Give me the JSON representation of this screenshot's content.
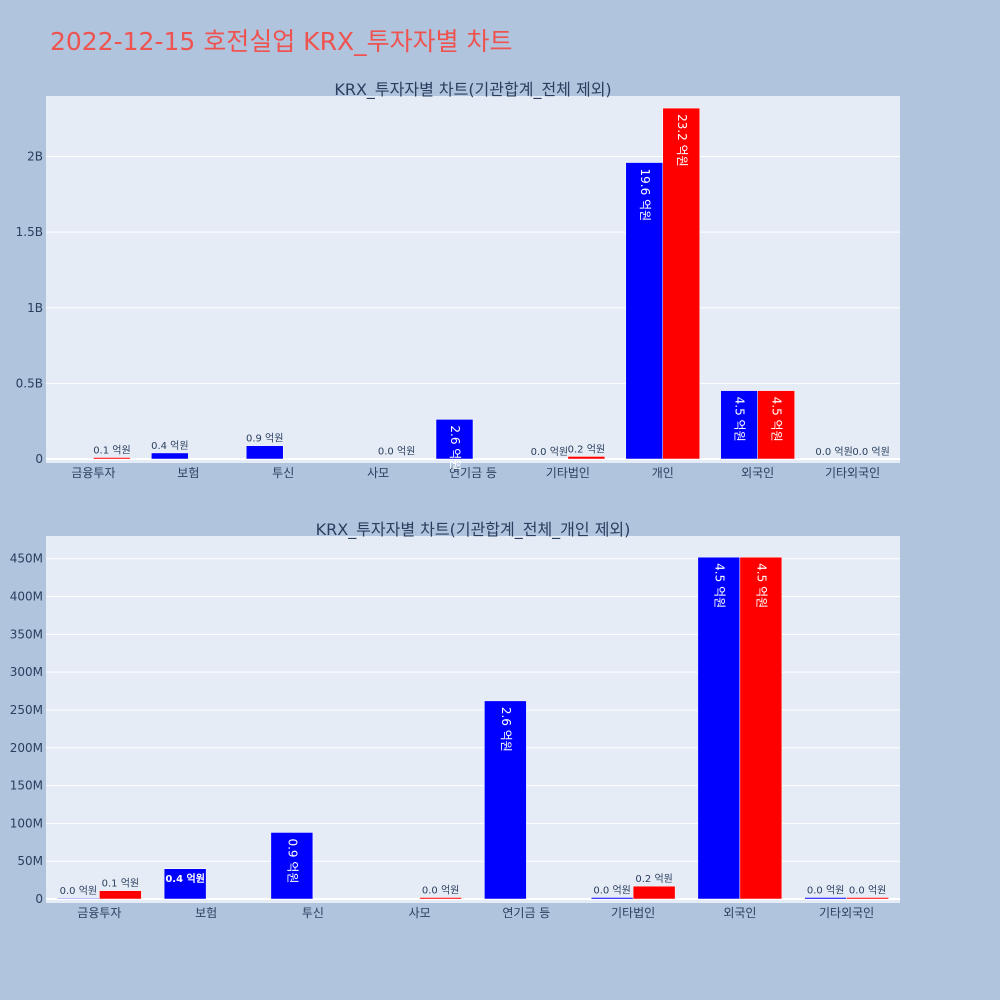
{
  "title": "2022-12-15 호전실업 KRX_투자자별 차트",
  "colors": {
    "buy": "#0000ff",
    "sell": "#ff0000",
    "plot_bg": "#e5ecf6",
    "page_bg": "#b0c4de",
    "title": "#ef5350"
  },
  "chart_data": [
    {
      "type": "bar",
      "title": "KRX_투자자별 차트(기관합계_전체 제외)",
      "categories": [
        "금융투자",
        "보험",
        "투신",
        "사모",
        "연기금 등",
        "기타법인",
        "개인",
        "외국인",
        "기타외국인"
      ],
      "ytick_labels": [
        "0",
        "0.5B",
        "1B",
        "1.5B",
        "2B"
      ],
      "ytick_values": [
        0,
        500000000,
        1000000000,
        1500000000,
        2000000000
      ],
      "ylim": [
        0,
        2400000000
      ],
      "grid": true,
      "series": [
        {
          "color": "#0000ff",
          "values": [
            0,
            40000000,
            88000000,
            0,
            262000000,
            0,
            1960000000,
            452000000,
            0
          ],
          "labels": [
            "",
            "0.4 억원",
            "0.9 억원",
            "",
            "2.6 억원",
            "0.0 억원",
            "19.6 억원",
            "4.5 억원",
            "0.0 억원"
          ],
          "label_pos": [
            "",
            "outside",
            "outside",
            "",
            "inside",
            "outside",
            "inside",
            "inside",
            "outside"
          ]
        },
        {
          "color": "#ff0000",
          "values": [
            10000000,
            0,
            0,
            2000000,
            0,
            17000000,
            2320000000,
            452000000,
            0
          ],
          "labels": [
            "0.1 억원",
            "",
            "",
            "0.0 억원",
            "",
            "0.2 억원",
            "23.2 억원",
            "4.5 억원",
            "0.0 억원"
          ],
          "label_pos": [
            "outside",
            "",
            "",
            "outside",
            "",
            "outside",
            "inside",
            "inside",
            "outside"
          ]
        }
      ]
    },
    {
      "type": "bar",
      "title": "KRX_투자자별 차트(기관합계_전체_개인 제외)",
      "categories": [
        "금융투자",
        "보험",
        "투신",
        "사모",
        "연기금 등",
        "기타법인",
        "외국인",
        "기타외국인"
      ],
      "ytick_labels": [
        "0",
        "50M",
        "100M",
        "150M",
        "200M",
        "250M",
        "300M",
        "350M",
        "400M",
        "450M"
      ],
      "ytick_values": [
        0,
        50000000,
        100000000,
        150000000,
        200000000,
        250000000,
        300000000,
        350000000,
        400000000,
        450000000
      ],
      "ylim": [
        0,
        480000000
      ],
      "grid": true,
      "series": [
        {
          "color": "#0000ff",
          "values": [
            1000000,
            40000000,
            88000000,
            0,
            262000000,
            2000000,
            452000000,
            2000000
          ],
          "labels": [
            "0.0 억원",
            "0.4 억원",
            "0.9 억원",
            "",
            "2.6 억원",
            "0.0 억원",
            "4.5 억원",
            "0.0 억원"
          ],
          "label_pos": [
            "outside",
            "inside",
            "inside",
            "",
            "inside",
            "outside",
            "inside",
            "outside"
          ]
        },
        {
          "color": "#ff0000",
          "values": [
            11000000,
            0,
            0,
            2000000,
            0,
            17000000,
            452000000,
            2000000
          ],
          "labels": [
            "0.1 억원",
            "",
            "",
            "0.0 억원",
            "",
            "0.2 억원",
            "4.5 억원",
            "0.0 억원"
          ],
          "label_pos": [
            "outside",
            "",
            "",
            "outside",
            "",
            "outside",
            "inside",
            "outside"
          ]
        }
      ]
    }
  ]
}
